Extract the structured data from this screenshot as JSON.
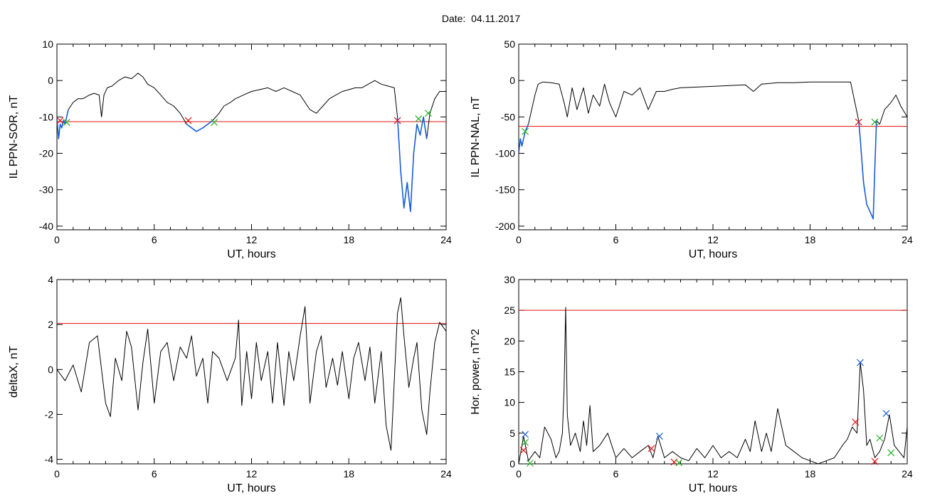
{
  "page": {
    "title": "Date:  04.11.2017"
  },
  "colors": {
    "trace": "#000000",
    "threshold": "#e01010",
    "highlight": "#1a5fd6",
    "marker_red": "#e01010",
    "marker_green": "#20b020",
    "marker_blue": "#1a5fd6"
  },
  "chart_data": [
    {
      "type": "line",
      "xlabel": "UT, hours",
      "ylabel": "IL PPN-SOR, nT",
      "xlim": [
        0,
        24
      ],
      "ylim": [
        -41,
        10
      ],
      "xticks": [
        0,
        6,
        12,
        18,
        24
      ],
      "yticks": [
        10,
        0,
        -10,
        -20,
        -30,
        -40
      ],
      "grid": false,
      "threshold": -11.3,
      "series": [
        {
          "x": [
            0,
            0.1,
            0.2,
            0.3,
            0.4,
            0.5,
            0.7,
            1,
            1.3,
            1.6,
            2,
            2.3,
            2.6,
            2.75,
            2.9,
            3.1,
            3.4,
            3.8,
            4.2,
            4.6,
            5,
            5.3,
            5.6,
            6,
            6.4,
            6.8,
            7.2,
            7.6,
            8,
            8.3,
            8.6,
            9,
            9.3,
            9.6,
            10,
            10.3,
            10.7,
            11,
            11.5,
            12,
            12.5,
            13,
            13.5,
            14,
            14.5,
            15,
            15.3,
            15.6,
            16,
            16.4,
            16.8,
            17.2,
            17.6,
            18,
            18.4,
            18.8,
            19.2,
            19.6,
            20,
            20.4,
            20.8,
            21.0,
            21.2,
            21.4,
            21.6,
            21.8,
            22.0,
            22.2,
            22.4,
            22.6,
            22.8,
            23,
            23.3,
            23.6,
            24
          ],
          "y": [
            -10,
            -16,
            -12,
            -13,
            -11,
            -12,
            -8,
            -6,
            -5,
            -5,
            -4,
            -3.5,
            -4,
            -10,
            -4,
            -2,
            -1.5,
            0,
            1,
            0.5,
            2,
            1,
            -1,
            -2,
            -4,
            -6,
            -7,
            -9,
            -12,
            -13,
            -14,
            -13,
            -12,
            -11,
            -9,
            -7,
            -6,
            -5,
            -4,
            -3,
            -2.5,
            -2,
            -3,
            -2,
            -3,
            -4,
            -6,
            -8,
            -9,
            -7,
            -5,
            -4,
            -3,
            -2.5,
            -2,
            -2,
            -1,
            0,
            -1,
            -1.5,
            -2,
            -10,
            -25,
            -35,
            -28,
            -36,
            -20,
            -12,
            -15,
            -10,
            -16,
            -9,
            -5,
            -3,
            -3
          ]
        },
        {
          "name": "",
          "x": [
            0,
            0.1,
            0.2,
            0.3,
            0.4,
            0.5,
            0.7
          ],
          "y": [
            -10,
            -16,
            -12,
            -13,
            -11,
            -12,
            -8
          ],
          "highlight": true
        },
        {
          "name": "",
          "x": [
            8,
            8.3,
            8.6,
            9,
            9.3,
            9.6
          ],
          "y": [
            -12,
            -13,
            -14,
            -13,
            -12,
            -11
          ],
          "highlight": true
        },
        {
          "name": "",
          "x": [
            21.0,
            21.2,
            21.4,
            21.6,
            21.8,
            22.0,
            22.2,
            22.4,
            22.6,
            22.8
          ],
          "y": [
            -10,
            -25,
            -35,
            -28,
            -36,
            -20,
            -12,
            -15,
            -10,
            -16
          ],
          "highlight": true
        }
      ],
      "markers": [
        {
          "x": 0.2,
          "y": -11,
          "color": "red"
        },
        {
          "x": 0.6,
          "y": -11.5,
          "color": "green"
        },
        {
          "x": 8.1,
          "y": -11,
          "color": "red"
        },
        {
          "x": 9.7,
          "y": -11.5,
          "color": "green"
        },
        {
          "x": 21.0,
          "y": -11,
          "color": "red"
        },
        {
          "x": 22.3,
          "y": -10.5,
          "color": "green"
        },
        {
          "x": 22.9,
          "y": -9,
          "color": "green"
        }
      ]
    },
    {
      "type": "line",
      "xlabel": "UT, hours",
      "ylabel": "IL PPN-NAL, nT",
      "xlim": [
        0,
        24
      ],
      "ylim": [
        -205,
        50
      ],
      "xticks": [
        0,
        6,
        12,
        18,
        24
      ],
      "yticks": [
        50,
        0,
        -50,
        -100,
        -150,
        -200
      ],
      "grid": false,
      "threshold": -63,
      "series": [
        {
          "x": [
            0,
            0.1,
            0.2,
            0.4,
            0.6,
            0.8,
            1,
            1.2,
            1.5,
            2,
            2.5,
            2.8,
            3,
            3.3,
            3.6,
            4,
            4.3,
            4.6,
            5,
            5.3,
            5.6,
            6,
            6.5,
            7,
            7.5,
            8,
            8.5,
            9,
            9.5,
            10,
            11,
            12,
            13,
            14,
            14.5,
            15,
            15.5,
            16,
            17,
            18,
            19,
            20,
            20.5,
            21,
            21.1,
            21.3,
            21.5,
            21.7,
            21.9,
            22.0,
            22.1,
            22.3,
            22.6,
            23,
            23.3,
            23.6,
            24
          ],
          "y": [
            -100,
            -80,
            -90,
            -70,
            -60,
            -40,
            -20,
            -5,
            -2,
            -3,
            -5,
            -30,
            -50,
            -10,
            -40,
            -10,
            -45,
            -20,
            -35,
            -5,
            -30,
            -50,
            -15,
            -20,
            -10,
            -40,
            -15,
            -15,
            -12,
            -10,
            -9,
            -8,
            -7,
            -6,
            -15,
            -5,
            -4,
            -3,
            -3,
            -2,
            -2,
            -2,
            -2,
            -55,
            -80,
            -140,
            -170,
            -180,
            -190,
            -120,
            -55,
            -60,
            -40,
            -30,
            -20,
            -35,
            -50
          ]
        },
        {
          "name": "",
          "x": [
            0,
            0.1,
            0.2,
            0.4,
            0.6
          ],
          "y": [
            -100,
            -80,
            -90,
            -70,
            -60
          ],
          "highlight": true
        },
        {
          "name": "",
          "x": [
            21,
            21.1,
            21.3,
            21.5,
            21.7,
            21.9,
            22.0,
            22.1
          ],
          "y": [
            -55,
            -80,
            -140,
            -170,
            -180,
            -190,
            -120,
            -55
          ],
          "highlight": true
        }
      ],
      "markers": [
        {
          "x": 0.4,
          "y": -70,
          "color": "green"
        },
        {
          "x": 21.0,
          "y": -57,
          "color": "red"
        },
        {
          "x": 22.0,
          "y": -57,
          "color": "green"
        }
      ]
    },
    {
      "type": "line",
      "xlabel": "UT, hours",
      "ylabel": "deltaX, nT",
      "xlim": [
        0,
        24
      ],
      "ylim": [
        -4.2,
        4
      ],
      "xticks": [
        0,
        6,
        12,
        18,
        24
      ],
      "yticks": [
        4,
        2,
        0,
        -2,
        -4
      ],
      "grid": false,
      "threshold": 2.05,
      "series": [
        {
          "x": [
            0,
            0.5,
            1,
            1.5,
            2,
            2.5,
            3,
            3.3,
            3.6,
            4,
            4.3,
            4.6,
            5,
            5.3,
            5.6,
            6,
            6.4,
            6.8,
            7.2,
            7.6,
            8,
            8.3,
            8.6,
            9,
            9.3,
            9.6,
            10,
            10.5,
            11,
            11.2,
            11.4,
            11.7,
            12,
            12.3,
            12.6,
            13,
            13.3,
            13.6,
            14,
            14.3,
            14.6,
            15,
            15.3,
            15.6,
            16,
            16.3,
            16.6,
            17,
            17.3,
            17.6,
            18,
            18.3,
            18.6,
            19,
            19.3,
            19.6,
            20,
            20.3,
            20.6,
            21,
            21.2,
            21.4,
            21.7,
            22,
            22.2,
            22.5,
            22.8,
            23,
            23.3,
            23.6,
            24
          ],
          "y": [
            0,
            -0.5,
            0.2,
            -1,
            1.2,
            1.5,
            -1.5,
            -2.1,
            0.5,
            -0.5,
            1.7,
            1,
            -1.8,
            0.3,
            1.8,
            -1.5,
            0.8,
            1.2,
            -0.5,
            1,
            0.5,
            1.5,
            -0.3,
            0.5,
            -1.5,
            0.8,
            0.5,
            -0.5,
            0.5,
            2.2,
            -1.6,
            0.8,
            -1.3,
            1.2,
            -0.5,
            0.8,
            -1.5,
            1.2,
            -1.6,
            0.8,
            -0.5,
            1.5,
            2.8,
            -1.5,
            0.8,
            1.5,
            -0.8,
            0.5,
            -0.7,
            0.8,
            -1.3,
            0.5,
            1.2,
            -0.5,
            1,
            -1.5,
            0.8,
            -2.5,
            -3.6,
            2.5,
            3.2,
            1.5,
            -0.8,
            0.5,
            1.2,
            -1.8,
            -2.9,
            -1,
            1.2,
            2.1,
            1.7
          ]
        }
      ],
      "markers": []
    },
    {
      "type": "line",
      "xlabel": "UT, hours",
      "ylabel": "Hor. power, nT^2",
      "xlim": [
        0,
        24
      ],
      "ylim": [
        0,
        30
      ],
      "xticks": [
        0,
        6,
        12,
        18,
        24
      ],
      "yticks": [
        0,
        5,
        10,
        15,
        20,
        25,
        30
      ],
      "grid": false,
      "threshold": 25,
      "series": [
        {
          "x": [
            0,
            0.3,
            0.6,
            1,
            1.3,
            1.6,
            2,
            2.3,
            2.5,
            2.7,
            2.8,
            2.9,
            3,
            3.2,
            3.5,
            3.8,
            4,
            4.2,
            4.4,
            4.6,
            5,
            5.5,
            6,
            6.5,
            7,
            7.5,
            8,
            8.3,
            8.6,
            9,
            9.5,
            10,
            10.5,
            11,
            11.5,
            12,
            12.5,
            13,
            13.5,
            14,
            14.3,
            14.6,
            15,
            15.3,
            15.6,
            16,
            16.5,
            17,
            17.5,
            18,
            18.5,
            19,
            19.5,
            20,
            20.3,
            20.6,
            20.9,
            21.1,
            21.3,
            21.5,
            21.7,
            22,
            22.3,
            22.6,
            22.9,
            23.2,
            23.5,
            23.8,
            24
          ],
          "y": [
            0,
            4.5,
            0.5,
            2,
            1,
            6,
            4,
            1,
            2,
            5,
            12,
            25.5,
            8,
            3,
            5,
            2,
            7,
            3,
            9.5,
            2,
            3,
            5,
            1,
            2.5,
            1,
            2,
            3,
            1,
            4.5,
            1,
            2,
            1,
            0.5,
            2.5,
            1,
            3,
            1,
            2,
            1,
            4,
            2,
            7,
            2,
            5,
            2,
            9,
            3,
            2,
            1,
            0.5,
            0,
            0.5,
            1,
            3,
            4,
            6,
            5,
            16.5,
            12,
            3,
            4,
            1,
            2,
            4,
            8,
            3,
            2,
            1,
            6
          ]
        }
      ],
      "markers": [
        {
          "x": 0.3,
          "y": 2.2,
          "color": "red"
        },
        {
          "x": 0.4,
          "y": 4.8,
          "color": "blue"
        },
        {
          "x": 0.4,
          "y": 3.5,
          "color": "green"
        },
        {
          "x": 0.7,
          "y": 0.1,
          "color": "green"
        },
        {
          "x": 8.2,
          "y": 2.5,
          "color": "red"
        },
        {
          "x": 8.7,
          "y": 4.5,
          "color": "blue"
        },
        {
          "x": 9.6,
          "y": 0.3,
          "color": "red"
        },
        {
          "x": 9.9,
          "y": 0.2,
          "color": "green"
        },
        {
          "x": 20.8,
          "y": 6.8,
          "color": "red"
        },
        {
          "x": 21.1,
          "y": 16.5,
          "color": "blue"
        },
        {
          "x": 22.0,
          "y": 0.4,
          "color": "red"
        },
        {
          "x": 22.3,
          "y": 4.2,
          "color": "green"
        },
        {
          "x": 22.7,
          "y": 8.2,
          "color": "blue"
        },
        {
          "x": 23.0,
          "y": 1.8,
          "color": "green"
        }
      ]
    }
  ]
}
